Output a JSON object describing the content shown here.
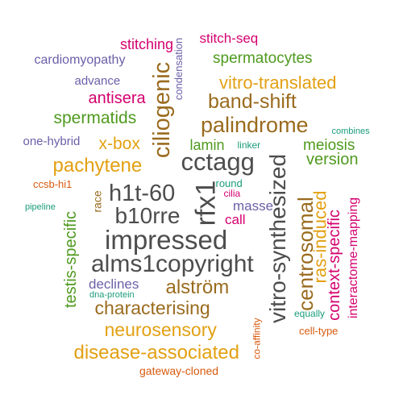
{
  "colors": {
    "gray": "#4d4d4d",
    "brown": "#9a6b1e",
    "gold": "#e3a012",
    "green": "#4f9a1f",
    "magenta": "#d4006f",
    "purple": "#6b5fa8",
    "teal": "#1a9c7a",
    "orange": "#d95a0e"
  },
  "words": [
    {
      "text": "stitching",
      "color": "magenta",
      "orientation": "horizontal"
    },
    {
      "text": "stitch-seq",
      "color": "magenta",
      "orientation": "horizontal"
    },
    {
      "text": "condensation",
      "color": "purple",
      "orientation": "vertical"
    },
    {
      "text": "cardiomyopathy",
      "color": "purple",
      "orientation": "horizontal"
    },
    {
      "text": "ciliogenic",
      "color": "brown",
      "orientation": "vertical"
    },
    {
      "text": "spermatocytes",
      "color": "green",
      "orientation": "horizontal"
    },
    {
      "text": "advance",
      "color": "purple",
      "orientation": "horizontal"
    },
    {
      "text": "vitro-translated",
      "color": "gold",
      "orientation": "horizontal"
    },
    {
      "text": "antisera",
      "color": "magenta",
      "orientation": "horizontal"
    },
    {
      "text": "band-shift",
      "color": "brown",
      "orientation": "horizontal"
    },
    {
      "text": "spermatids",
      "color": "green",
      "orientation": "horizontal"
    },
    {
      "text": "palindrome",
      "color": "brown",
      "orientation": "horizontal"
    },
    {
      "text": "one-hybrid",
      "color": "purple",
      "orientation": "horizontal"
    },
    {
      "text": "x-box",
      "color": "gold",
      "orientation": "horizontal"
    },
    {
      "text": "lamin",
      "color": "green",
      "orientation": "horizontal"
    },
    {
      "text": "linker",
      "color": "teal",
      "orientation": "horizontal"
    },
    {
      "text": "combines",
      "color": "teal",
      "orientation": "horizontal"
    },
    {
      "text": "meiosis",
      "color": "green",
      "orientation": "horizontal"
    },
    {
      "text": "pachytene",
      "color": "gold",
      "orientation": "horizontal"
    },
    {
      "text": "cctagg",
      "color": "gray",
      "orientation": "horizontal"
    },
    {
      "text": "version",
      "color": "green",
      "orientation": "horizontal"
    },
    {
      "text": "ccsb-hi1",
      "color": "orange",
      "orientation": "horizontal"
    },
    {
      "text": "round",
      "color": "teal",
      "orientation": "horizontal"
    },
    {
      "text": "h1t-60",
      "color": "gray",
      "orientation": "horizontal"
    },
    {
      "text": "cilia",
      "color": "magenta",
      "orientation": "horizontal"
    },
    {
      "text": "race",
      "color": "brown",
      "orientation": "vertical"
    },
    {
      "text": "rfx1",
      "color": "gray",
      "orientation": "vertical"
    },
    {
      "text": "masse",
      "color": "purple",
      "orientation": "horizontal"
    },
    {
      "text": "pipeline",
      "color": "teal",
      "orientation": "horizontal"
    },
    {
      "text": "b10rre",
      "color": "gray",
      "orientation": "horizontal"
    },
    {
      "text": "call",
      "color": "magenta",
      "orientation": "horizontal"
    },
    {
      "text": "impressed",
      "color": "gray",
      "orientation": "horizontal"
    },
    {
      "text": "testis-specific",
      "color": "green",
      "orientation": "vertical"
    },
    {
      "text": "alms1copyright",
      "color": "gray",
      "orientation": "horizontal"
    },
    {
      "text": "vitro-synthesized",
      "color": "gray",
      "orientation": "vertical"
    },
    {
      "text": "centrosomal",
      "color": "brown",
      "orientation": "vertical"
    },
    {
      "text": "ras-induced",
      "color": "gold",
      "orientation": "vertical"
    },
    {
      "text": "context-specific",
      "color": "magenta",
      "orientation": "vertical"
    },
    {
      "text": "interactome-mapping",
      "color": "magenta",
      "orientation": "vertical"
    },
    {
      "text": "declines",
      "color": "purple",
      "orientation": "horizontal"
    },
    {
      "text": "dna-protein",
      "color": "teal",
      "orientation": "horizontal"
    },
    {
      "text": "alström",
      "color": "brown",
      "orientation": "horizontal"
    },
    {
      "text": "characterising",
      "color": "brown",
      "orientation": "horizontal"
    },
    {
      "text": "equally",
      "color": "teal",
      "orientation": "horizontal"
    },
    {
      "text": "neurosensory",
      "color": "gold",
      "orientation": "horizontal"
    },
    {
      "text": "co-affinity",
      "color": "orange",
      "orientation": "vertical"
    },
    {
      "text": "cell-type",
      "color": "orange",
      "orientation": "horizontal"
    },
    {
      "text": "disease-associated",
      "color": "gold",
      "orientation": "horizontal"
    },
    {
      "text": "gateway-cloned",
      "color": "orange",
      "orientation": "horizontal"
    }
  ]
}
